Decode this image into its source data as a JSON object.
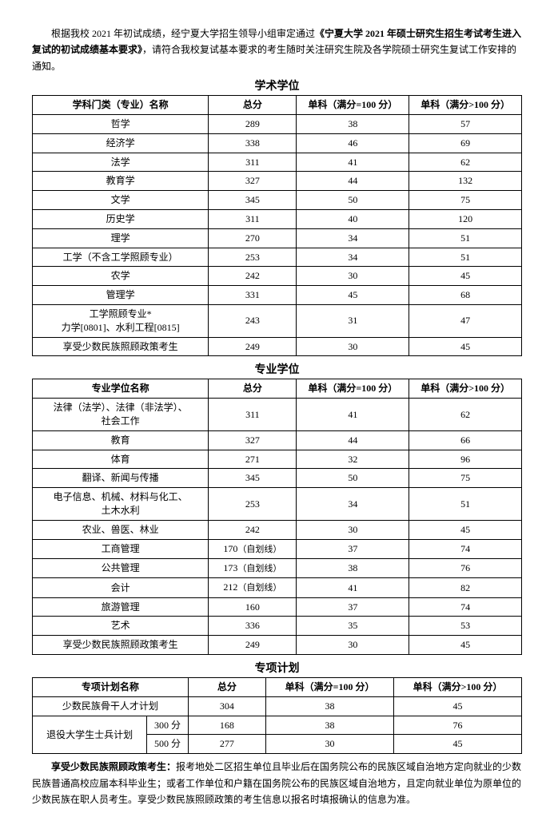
{
  "intro": {
    "part1": "根据我校 2021 年初试成绩，经宁夏大学招生领导小组审定通过",
    "bold": "《宁夏大学 2021 年硕士研究生招生考试考生进入复试的初试成绩基本要求》",
    "part2": "，请符合我校复试基本要求的考生随时关注研究生院及各学院硕士研究生复试工作安排的通知。"
  },
  "table1": {
    "title": "学术学位",
    "headers": [
      "学科门类（专业）名称",
      "总分",
      "单科（满分=100 分）",
      "单科（满分>100 分）"
    ],
    "rows": [
      [
        "哲学",
        "289",
        "38",
        "57"
      ],
      [
        "经济学",
        "338",
        "46",
        "69"
      ],
      [
        "法学",
        "311",
        "41",
        "62"
      ],
      [
        "教育学",
        "327",
        "44",
        "132"
      ],
      [
        "文学",
        "345",
        "50",
        "75"
      ],
      [
        "历史学",
        "311",
        "40",
        "120"
      ],
      [
        "理学",
        "270",
        "34",
        "51"
      ],
      [
        "工学（不含工学照顾专业）",
        "253",
        "34",
        "51"
      ],
      [
        "农学",
        "242",
        "30",
        "45"
      ],
      [
        "管理学",
        "331",
        "45",
        "68"
      ],
      [
        "工学照顾专业*\n力学[0801]、水利工程[0815]",
        "243",
        "31",
        "47"
      ],
      [
        "享受少数民族照顾政策考生",
        "249",
        "30",
        "45"
      ]
    ]
  },
  "table2": {
    "title": "专业学位",
    "headers": [
      "专业学位名称",
      "总分",
      "单科（满分=100 分）",
      "单科（满分>100 分）"
    ],
    "rows": [
      [
        "法律（法学）、法律（非法学）、\n社会工作",
        "311",
        "41",
        "62"
      ],
      [
        "教育",
        "327",
        "44",
        "66"
      ],
      [
        "体育",
        "271",
        "32",
        "96"
      ],
      [
        "翻译、新闻与传播",
        "345",
        "50",
        "75"
      ],
      [
        "电子信息、机械、材料与化工、\n土木水利",
        "253",
        "34",
        "51"
      ],
      [
        "农业、兽医、林业",
        "242",
        "30",
        "45"
      ],
      [
        "工商管理",
        "170（自划线）",
        "37",
        "74"
      ],
      [
        "公共管理",
        "173（自划线）",
        "38",
        "76"
      ],
      [
        "会计",
        "212（自划线）",
        "41",
        "82"
      ],
      [
        "旅游管理",
        "160",
        "37",
        "74"
      ],
      [
        "艺术",
        "336",
        "35",
        "53"
      ],
      [
        "享受少数民族照顾政策考生",
        "249",
        "30",
        "45"
      ]
    ]
  },
  "table3": {
    "title": "专项计划",
    "headers": [
      "专项计划名称",
      "总分",
      "单科（满分=100 分）",
      "单科（满分>100 分）"
    ],
    "row1": [
      "少数民族骨干人才计划",
      "304",
      "38",
      "45"
    ],
    "span_label": "退役大学生士兵计划",
    "row2a": [
      "300 分",
      "168",
      "38",
      "76"
    ],
    "row2b": [
      "500 分",
      "277",
      "30",
      "45"
    ]
  },
  "footnote": {
    "bold": "享受少数民族照顾政策考生：",
    "text": "报考地处二区招生单位且毕业后在国务院公布的民族区域自治地方定向就业的少数民族普通高校应届本科毕业生；或者工作单位和户籍在国务院公布的民族区域自治地方，且定向就业单位为原单位的少数民族在职人员考生。享受少数民族照顾政策的考生信息以报名时填报确认的信息为准。"
  }
}
